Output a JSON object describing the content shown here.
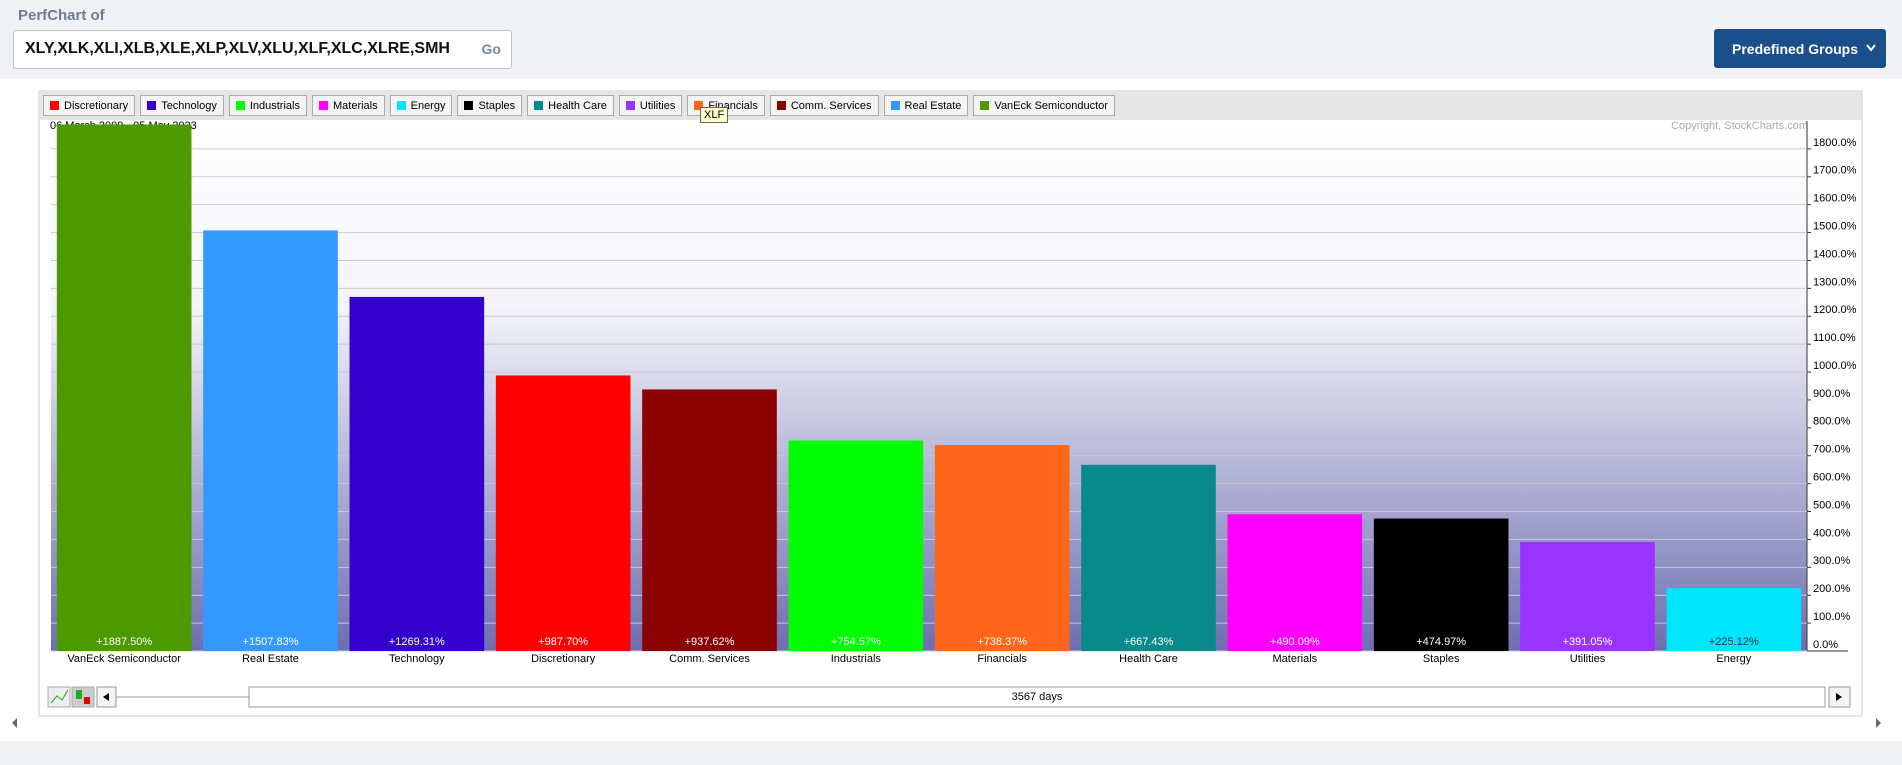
{
  "header": {
    "label": "PerfChart of",
    "symbols": "XLY,XLK,XLI,XLB,XLE,XLP,XLV,XLU,XLF,XLC,XLRE,SMH",
    "go": "Go",
    "groups_button": "Predefined Groups"
  },
  "chart_data": {
    "type": "bar",
    "date_range": "06 March 2009 - 05 May 2023",
    "copyright": "Copyright, StockCharts.com",
    "tooltip": "XLF",
    "legend": [
      {
        "name": "Discretionary",
        "color": "#ff0000"
      },
      {
        "name": "Technology",
        "color": "#3300cc"
      },
      {
        "name": "Industrials",
        "color": "#00ff00"
      },
      {
        "name": "Materials",
        "color": "#ff00ff"
      },
      {
        "name": "Energy",
        "color": "#00e5ff"
      },
      {
        "name": "Staples",
        "color": "#000000"
      },
      {
        "name": "Health Care",
        "color": "#088a8a"
      },
      {
        "name": "Utilities",
        "color": "#9933ff"
      },
      {
        "name": "Financials",
        "color": "#ff661a"
      },
      {
        "name": "Comm. Services",
        "color": "#8b0000"
      },
      {
        "name": "Real Estate",
        "color": "#3399ff"
      },
      {
        "name": "VanEck Semiconductor",
        "color": "#4c9900"
      }
    ],
    "categories": [
      "VanEck Semiconductor",
      "Real Estate",
      "Technology",
      "Discretionary",
      "Comm. Services",
      "Industrials",
      "Financials",
      "Health Care",
      "Materials",
      "Staples",
      "Utilities",
      "Energy"
    ],
    "values": [
      1887.5,
      1507.83,
      1269.31,
      987.7,
      937.62,
      754.57,
      738.37,
      667.43,
      490.09,
      474.97,
      391.05,
      225.12
    ],
    "value_labels": [
      "+1887.50%",
      "+1507.83%",
      "+1269.31%",
      "+987.70%",
      "+937.62%",
      "+754.57%",
      "+738.37%",
      "+667.43%",
      "+490.09%",
      "+474.97%",
      "+391.05%",
      "+225.12%"
    ],
    "colors": [
      "#4c9900",
      "#3399ff",
      "#3300cc",
      "#ff0000",
      "#8b0000",
      "#00ff00",
      "#ff661a",
      "#088a8a",
      "#ff00ff",
      "#000000",
      "#9933ff",
      "#00e5ff"
    ],
    "ylim": [
      0,
      1900
    ],
    "yticks": [
      {
        "value": 0,
        "label": "0.0%"
      },
      {
        "value": 100,
        "label": "100.0%"
      },
      {
        "value": 200,
        "label": "200.0%"
      },
      {
        "value": 300,
        "label": "300.0%"
      },
      {
        "value": 400,
        "label": "400.0%"
      },
      {
        "value": 500,
        "label": "500.0%"
      },
      {
        "value": 600,
        "label": "600.0%"
      },
      {
        "value": 700,
        "label": "700.0%"
      },
      {
        "value": 800,
        "label": "800.0%"
      },
      {
        "value": 900,
        "label": "900.0%"
      },
      {
        "value": 1000,
        "label": "1000.0%"
      },
      {
        "value": 1100,
        "label": "1100.0%"
      },
      {
        "value": 1200,
        "label": "1200.0%"
      },
      {
        "value": 1300,
        "label": "1300.0%"
      },
      {
        "value": 1400,
        "label": "1400.0%"
      },
      {
        "value": 1500,
        "label": "1500.0%"
      },
      {
        "value": 1600,
        "label": "1600.0%"
      },
      {
        "value": 1700,
        "label": "1700.0%"
      },
      {
        "value": 1800,
        "label": "1800.0%"
      }
    ],
    "grid": true
  },
  "footer": {
    "duration": "3567 days"
  }
}
